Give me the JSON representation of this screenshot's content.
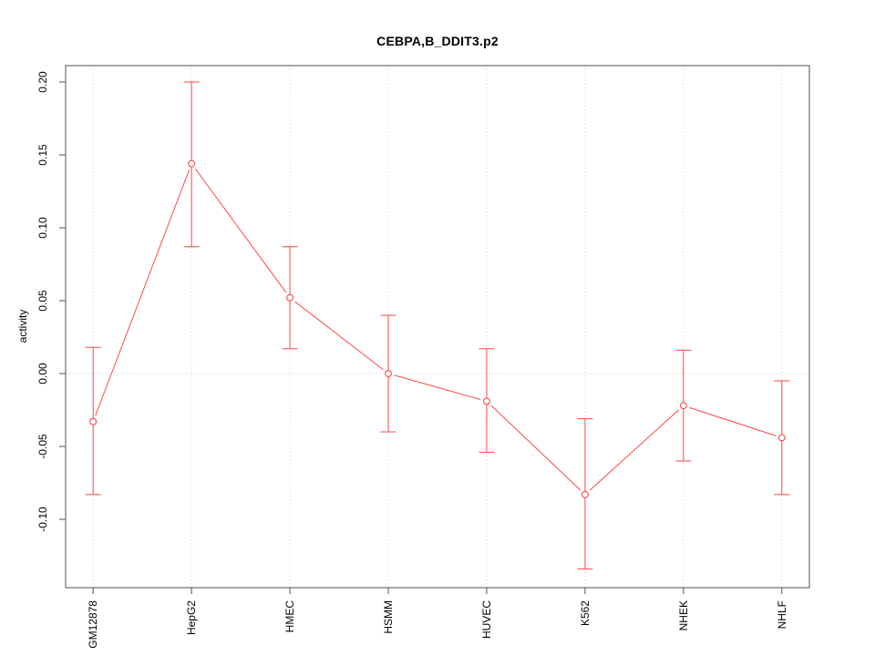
{
  "title": "CEBPA,B_DDIT3.p2",
  "chart_data": {
    "type": "line",
    "title": "CEBPA,B_DDIT3.p2",
    "xlabel": "",
    "ylabel": "activity",
    "categories": [
      "GM12878",
      "HepG2",
      "HMEC",
      "HSMM",
      "HUVEC",
      "K562",
      "NHEK",
      "NHLF"
    ],
    "series": [
      {
        "name": "activity",
        "values": [
          -0.033,
          0.144,
          0.052,
          0.0,
          -0.019,
          -0.083,
          -0.022,
          -0.044
        ],
        "error_low": [
          -0.083,
          0.087,
          0.017,
          -0.04,
          -0.054,
          -0.134,
          -0.06,
          -0.083
        ],
        "error_high": [
          0.018,
          0.2,
          0.087,
          0.04,
          0.017,
          -0.031,
          0.016,
          -0.005
        ]
      }
    ],
    "yticks": [
      0.2,
      0.15,
      0.1,
      0.05,
      0.0,
      -0.05,
      -0.1
    ],
    "ytick_labels": [
      "0.20",
      "0.15",
      "0.10",
      "0.05",
      "0.00",
      "-0.05",
      "-0.10"
    ],
    "ylim": [
      -0.147,
      0.211
    ],
    "grid": {
      "vertical_dotted_at_categories": true,
      "horizontal_dotted_at_zero": true
    },
    "legend": "none",
    "marker": "open-circle",
    "colors": {
      "series": "#ff4747",
      "grid": "#d4d4d4",
      "axis": "#6e6e6e",
      "text": "#000000",
      "background": "#ffffff"
    }
  }
}
